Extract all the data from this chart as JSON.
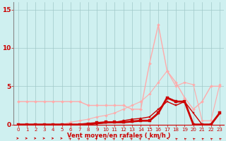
{
  "title": "",
  "xlabel": "Vent moyen/en rafales ( km/h )",
  "ylabel": "",
  "xlim": [
    -0.5,
    23.5
  ],
  "ylim": [
    0,
    16
  ],
  "yticks": [
    0,
    5,
    10,
    15
  ],
  "xticks": [
    0,
    1,
    2,
    3,
    4,
    5,
    6,
    7,
    8,
    9,
    10,
    11,
    12,
    13,
    14,
    15,
    16,
    17,
    18,
    19,
    20,
    21,
    22,
    23
  ],
  "bg_color": "#cff0f0",
  "grid_color": "#a0c8c8",
  "series": [
    {
      "x": [
        0,
        1,
        2,
        3,
        4,
        5,
        6,
        7,
        8,
        9,
        10,
        11,
        12,
        13,
        14,
        15,
        16,
        17,
        18,
        19,
        20,
        21,
        22,
        23
      ],
      "y": [
        3.0,
        3.0,
        3.0,
        3.0,
        3.0,
        3.0,
        3.0,
        3.0,
        2.5,
        2.5,
        2.5,
        2.5,
        2.5,
        2.0,
        2.0,
        8.0,
        13.0,
        7.0,
        5.5,
        3.5,
        2.0,
        3.0,
        5.0,
        5.0
      ],
      "color": "#ffaaaa",
      "lw": 1.0,
      "marker": "D",
      "ms": 2.0
    },
    {
      "x": [
        0,
        1,
        2,
        3,
        4,
        5,
        6,
        7,
        8,
        9,
        10,
        11,
        12,
        13,
        14,
        15,
        16,
        17,
        18,
        19,
        20,
        21,
        22,
        23
      ],
      "y": [
        0.0,
        0.0,
        0.0,
        0.0,
        0.0,
        0.0,
        0.3,
        0.5,
        0.7,
        1.0,
        1.2,
        1.5,
        2.0,
        2.5,
        3.0,
        4.0,
        5.5,
        7.0,
        5.0,
        5.5,
        5.2,
        0.5,
        0.5,
        5.2
      ],
      "color": "#ffaaaa",
      "lw": 0.8,
      "marker": "D",
      "ms": 1.8
    },
    {
      "x": [
        0,
        1,
        2,
        3,
        4,
        5,
        6,
        7,
        8,
        9,
        10,
        11,
        12,
        13,
        14,
        15,
        16,
        17,
        18,
        19,
        20,
        21,
        22,
        23
      ],
      "y": [
        0.0,
        0.0,
        0.0,
        0.0,
        0.0,
        0.0,
        0.0,
        0.0,
        0.1,
        0.2,
        0.3,
        0.3,
        0.3,
        0.4,
        0.5,
        0.5,
        1.5,
        3.5,
        3.0,
        3.0,
        0.0,
        0.0,
        0.0,
        1.5
      ],
      "color": "#cc0000",
      "lw": 2.0,
      "marker": "s",
      "ms": 2.5
    },
    {
      "x": [
        0,
        1,
        2,
        3,
        4,
        5,
        6,
        7,
        8,
        9,
        10,
        11,
        12,
        13,
        14,
        15,
        16,
        17,
        18,
        19,
        20,
        21,
        22,
        23
      ],
      "y": [
        0.0,
        0.0,
        0.0,
        0.0,
        0.0,
        0.0,
        0.0,
        0.0,
        0.0,
        0.1,
        0.2,
        0.3,
        0.5,
        0.7,
        0.8,
        1.0,
        2.0,
        3.0,
        2.5,
        3.0,
        1.5,
        0.0,
        0.0,
        1.5
      ],
      "color": "#cc0000",
      "lw": 1.0,
      "marker": "s",
      "ms": 1.8
    }
  ],
  "arrows": {
    "angles_deg": [
      90,
      90,
      90,
      90,
      90,
      90,
      45,
      45,
      45,
      45,
      45,
      45,
      45,
      45,
      45,
      45,
      270,
      270,
      315,
      315,
      315,
      315,
      315,
      315
    ]
  }
}
